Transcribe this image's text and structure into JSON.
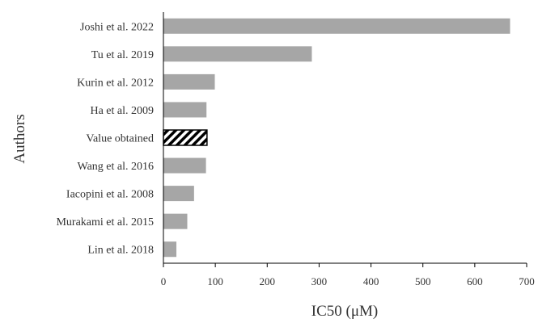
{
  "chart_data": {
    "type": "bar",
    "orientation": "horizontal",
    "title": "",
    "xlabel": "IC50 (μM)",
    "ylabel": "Authors",
    "xlim": [
      0,
      700
    ],
    "xticks": [
      0,
      100,
      200,
      300,
      400,
      500,
      600,
      700
    ],
    "grid": false,
    "legend": "none",
    "categories": [
      "Joshi et al. 2022",
      "Tu et al. 2019",
      "Kurin et al. 2012",
      "Ha et al. 2009",
      "Value obtained",
      "Wang et al. 2016",
      "Iacopini et al. 2008",
      "Murakami et al. 2015",
      "Lin et al. 2018"
    ],
    "values": [
      668,
      286,
      99,
      83,
      84,
      82,
      59,
      46,
      25
    ],
    "highlight_category": "Value obtained",
    "colors": {
      "bar": "#a6a6a6",
      "highlight_pattern": "#000000",
      "axis": "#000000",
      "text": "#333333"
    }
  }
}
